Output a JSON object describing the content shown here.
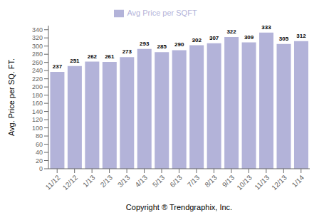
{
  "chart_data": {
    "type": "bar",
    "categories": [
      "11/12",
      "12/12",
      "1/13",
      "2/13",
      "3/13",
      "4/13",
      "5/13",
      "6/13",
      "7/13",
      "8/13",
      "9/13",
      "10/13",
      "11/13",
      "12/13",
      "1/14"
    ],
    "series": [
      {
        "name": "Avg Price per SQFT",
        "color": "#b3b3d9",
        "values": [
          237,
          251,
          262,
          261,
          273,
          293,
          285,
          290,
          302,
          307,
          322,
          309,
          333,
          305,
          312
        ]
      }
    ],
    "xlabel": "Copyright ® Trendgraphix, Inc.",
    "ylabel": "Avg. Price per SQ. FT.",
    "ylim": [
      0,
      350
    ],
    "yticks": [
      0,
      20,
      40,
      60,
      80,
      100,
      120,
      140,
      160,
      180,
      200,
      220,
      240,
      260,
      280,
      300,
      320,
      340
    ],
    "grid": false,
    "legend": "top",
    "data_labels": true
  }
}
